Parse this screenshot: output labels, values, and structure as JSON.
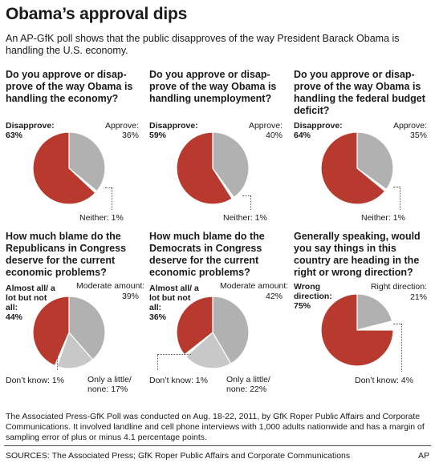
{
  "title": "Obama’s approval dips",
  "subtitle": "An AP-GfK poll shows that the public disapproves of the way President Barack Obama is handling the U.S. economy.",
  "colors": {
    "red": "#b83a2e",
    "gray": "#b1b1b1",
    "light_gray": "#c8c8c8",
    "white": "#ffffff"
  },
  "panels": [
    {
      "question": "Do you approve or disap-prove of the way Obama is handling the economy?",
      "left_label": "Disapprove:",
      "left_value": "63%",
      "right_label": "Approve:",
      "right_value": "36%",
      "small_label": "Neither: 1%"
    },
    {
      "question": "Do you approve or disap-prove of the way Obama is handling unemployment?",
      "left_label": "Disapprove:",
      "left_value": "59%",
      "right_label": "Approve:",
      "right_value": "40%",
      "small_label": "Neither: 1%"
    },
    {
      "question": "Do you approve or disap-prove of the way Obama is handling the federal budget deficit?",
      "left_label": "Disapprove:",
      "left_value": "64%",
      "right_label": "Approve:",
      "right_value": "35%",
      "small_label": "Neither: 1%"
    },
    {
      "question": "How much blame do the Republicans in Congress deserve for the current economic problems?",
      "left_label": "Almost all/ a lot but not all:",
      "left_value": "44%",
      "right_label": "Moderate amount:",
      "right_value": "39%",
      "small_label": "Don’t know: 1%",
      "third_label": "Only a little/ none: 17%"
    },
    {
      "question": "How much blame do the Democrats in Congress deserve for the current economic problems?",
      "left_label": "Almost all/ a lot but not all:",
      "left_value": "36%",
      "right_label": "Moderate amount:",
      "right_value": "42%",
      "small_label": "Don’t know: 1%",
      "third_label": "Only a little/ none: 22%"
    },
    {
      "question": "Generally speaking, would you say things in this country are heading in the right or wrong direction?",
      "left_label": "Wrong direction:",
      "left_value": "75%",
      "right_label": "Right direction:",
      "right_value": "21%",
      "small_label": "Don’t know: 4%"
    }
  ],
  "chart_data": [
    {
      "type": "pie",
      "title": "Do you approve or disapprove of the way Obama is handling the economy?",
      "slices": [
        {
          "label": "Approve",
          "value": 36,
          "color": "gray"
        },
        {
          "label": "Neither",
          "value": 1,
          "color": "white"
        },
        {
          "label": "Disapprove",
          "value": 63,
          "color": "red"
        }
      ]
    },
    {
      "type": "pie",
      "title": "Do you approve or disapprove of the way Obama is handling unemployment?",
      "slices": [
        {
          "label": "Approve",
          "value": 40,
          "color": "gray"
        },
        {
          "label": "Neither",
          "value": 1,
          "color": "white"
        },
        {
          "label": "Disapprove",
          "value": 59,
          "color": "red"
        }
      ]
    },
    {
      "type": "pie",
      "title": "Do you approve or disapprove of the way Obama is handling the federal budget deficit?",
      "slices": [
        {
          "label": "Approve",
          "value": 35,
          "color": "gray"
        },
        {
          "label": "Neither",
          "value": 1,
          "color": "white"
        },
        {
          "label": "Disapprove",
          "value": 64,
          "color": "red"
        }
      ]
    },
    {
      "type": "pie",
      "title": "How much blame do the Republicans in Congress deserve for the current economic problems?",
      "slices": [
        {
          "label": "Moderate amount",
          "value": 39,
          "color": "gray"
        },
        {
          "label": "Only a little/none",
          "value": 17,
          "color": "light_gray"
        },
        {
          "label": "Don't know",
          "value": 1,
          "color": "white"
        },
        {
          "label": "Almost all/a lot but not all",
          "value": 44,
          "color": "red"
        }
      ]
    },
    {
      "type": "pie",
      "title": "How much blame do the Democrats in Congress deserve for the current economic problems?",
      "slices": [
        {
          "label": "Moderate amount",
          "value": 42,
          "color": "gray"
        },
        {
          "label": "Only a little/none",
          "value": 22,
          "color": "light_gray"
        },
        {
          "label": "Don't know",
          "value": 1,
          "color": "white"
        },
        {
          "label": "Almost all/a lot but not all",
          "value": 36,
          "color": "red"
        }
      ]
    },
    {
      "type": "pie",
      "title": "Generally speaking, would you say things in this country are heading in the right or wrong direction?",
      "slices": [
        {
          "label": "Right direction",
          "value": 21,
          "color": "gray"
        },
        {
          "label": "Don't know",
          "value": 4,
          "color": "white"
        },
        {
          "label": "Wrong direction",
          "value": 75,
          "color": "red"
        }
      ]
    }
  ],
  "footnote": "The Associated Press-GfK Poll was conducted on Aug. 18-22, 2011, by GfK Roper Public Affairs and Corporate Communications. It involved landline and cell phone interviews with 1,000 adults nationwide and has a margin of sampling error of plus or minus 4.1 percentage points.",
  "sources": "SOURCES: The Associated Press; GfK Roper Public Affairs and Corporate Communications",
  "credit": "AP"
}
